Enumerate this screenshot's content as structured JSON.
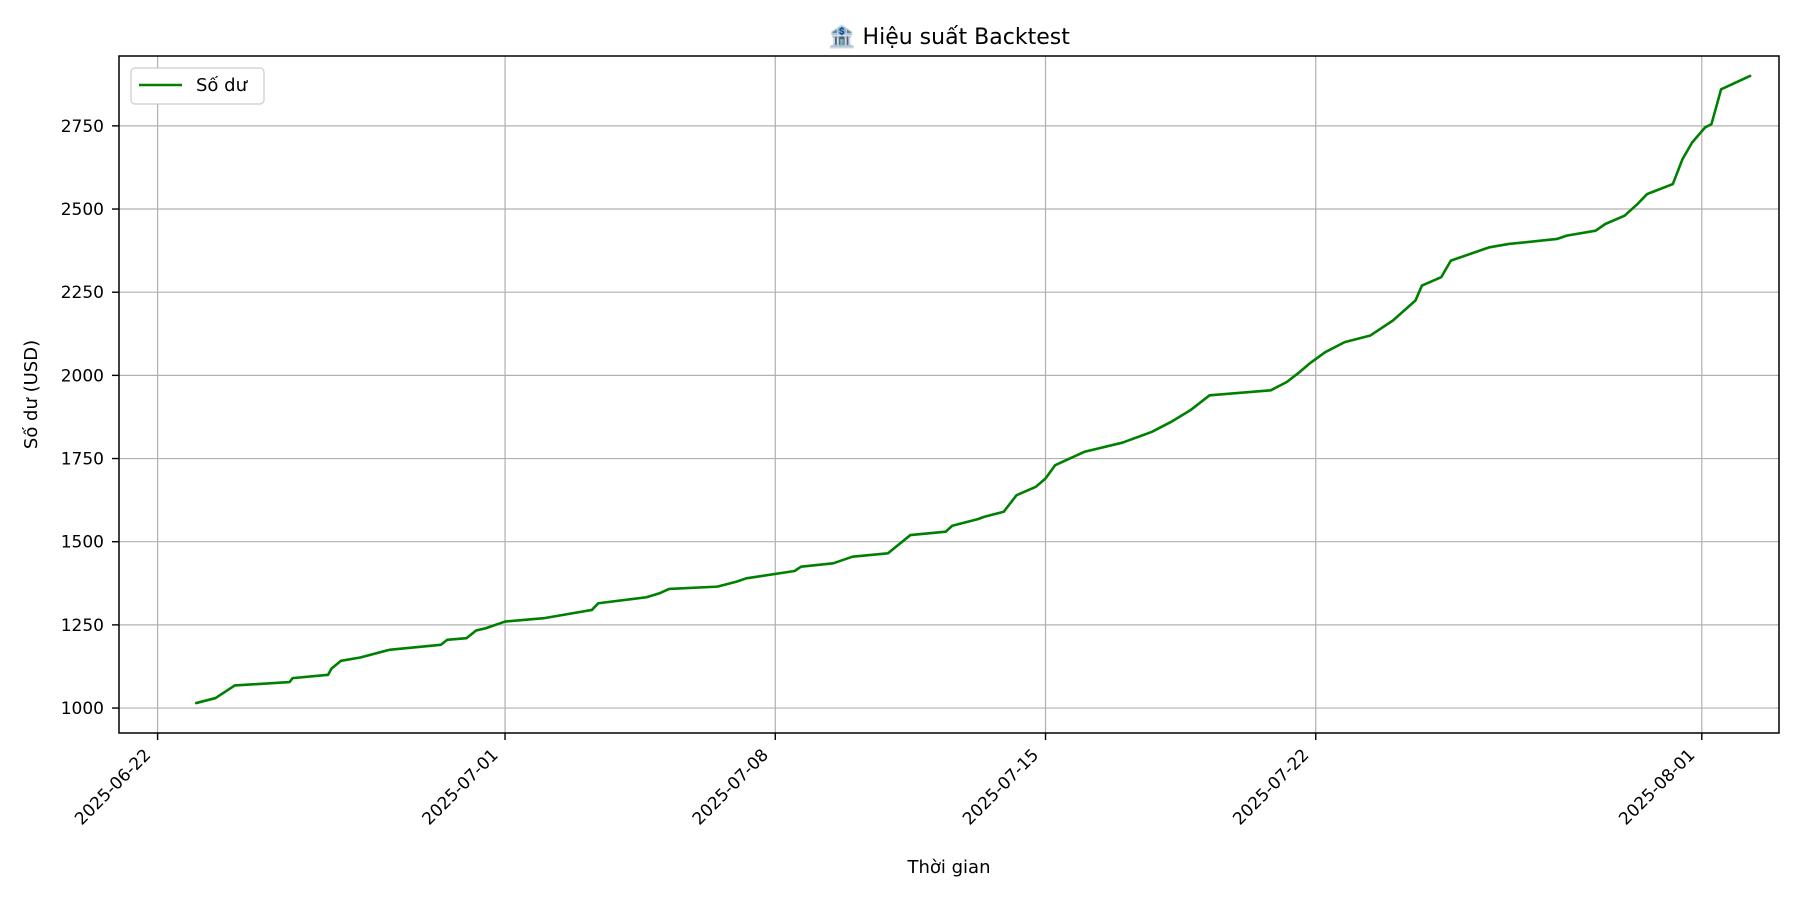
{
  "chart_data": {
    "type": "line",
    "title": "🏦 Hiệu suất Backtest",
    "xlabel": "Thời gian",
    "ylabel": "Số dư (USD)",
    "xlim": [
      "2025-06-21",
      "2025-08-03"
    ],
    "ylim": [
      925,
      2960
    ],
    "x_tick_labels": [
      "2025-06-22",
      "2025-07-01",
      "2025-07-08",
      "2025-07-15",
      "2025-07-22",
      "2025-08-01"
    ],
    "y_ticks": [
      1000,
      1250,
      1500,
      1750,
      2000,
      2250,
      2500,
      2750
    ],
    "y_tick_labels": [
      "1000",
      "1250",
      "1500",
      "1750",
      "2000",
      "2250",
      "2500",
      "2750"
    ],
    "grid": true,
    "legend_position": "top-left",
    "colors": {
      "line": "#008000"
    },
    "series": [
      {
        "name": "Số dư",
        "color": "#008000",
        "points": [
          [
            "2025-06-23",
            1015
          ],
          [
            "2025-06-23 12:00",
            1030
          ],
          [
            "2025-06-24",
            1068
          ],
          [
            "2025-06-25 10:00",
            1078
          ],
          [
            "2025-06-25 12:00",
            1090
          ],
          [
            "2025-06-26 10:00",
            1100
          ],
          [
            "2025-06-26 12:00",
            1118
          ],
          [
            "2025-06-26 18:00",
            1142
          ],
          [
            "2025-06-27 06:00",
            1152
          ],
          [
            "2025-06-28",
            1175
          ],
          [
            "2025-06-29 08:00",
            1190
          ],
          [
            "2025-06-29 12:00",
            1205
          ],
          [
            "2025-06-30",
            1210
          ],
          [
            "2025-06-30 06:00",
            1233
          ],
          [
            "2025-06-30 12:00",
            1240
          ],
          [
            "2025-07-01",
            1260
          ],
          [
            "2025-07-02",
            1270
          ],
          [
            "2025-07-02 18:00",
            1285
          ],
          [
            "2025-07-03 06:00",
            1295
          ],
          [
            "2025-07-03 10:00",
            1315
          ],
          [
            "2025-07-04 16:00",
            1333
          ],
          [
            "2025-07-05",
            1345
          ],
          [
            "2025-07-05 06:00",
            1358
          ],
          [
            "2025-07-06 12:00",
            1365
          ],
          [
            "2025-07-07",
            1380
          ],
          [
            "2025-07-07 06:00",
            1390
          ],
          [
            "2025-07-08 12:00",
            1412
          ],
          [
            "2025-07-08 16:00",
            1425
          ],
          [
            "2025-07-09 12:00",
            1435
          ],
          [
            "2025-07-10",
            1455
          ],
          [
            "2025-07-10 22:00",
            1465
          ],
          [
            "2025-07-11 12:00",
            1520
          ],
          [
            "2025-07-12 10:00",
            1530
          ],
          [
            "2025-07-12 14:00",
            1548
          ],
          [
            "2025-07-13 06:00",
            1568
          ],
          [
            "2025-07-13 10:00",
            1575
          ],
          [
            "2025-07-13 22:00",
            1590
          ],
          [
            "2025-07-14 06:00",
            1640
          ],
          [
            "2025-07-14 18:00",
            1665
          ],
          [
            "2025-07-15",
            1690
          ],
          [
            "2025-07-15 06:00",
            1730
          ],
          [
            "2025-07-16",
            1770
          ],
          [
            "2025-07-17",
            1798
          ],
          [
            "2025-07-17 18:00",
            1830
          ],
          [
            "2025-07-18 06:00",
            1860
          ],
          [
            "2025-07-18 18:00",
            1895
          ],
          [
            "2025-07-19 06:00",
            1940
          ],
          [
            "2025-07-20 20:00",
            1955
          ],
          [
            "2025-07-21 06:00",
            1980
          ],
          [
            "2025-07-21 14:00",
            2010
          ],
          [
            "2025-07-21 20:00",
            2035
          ],
          [
            "2025-07-22 06:00",
            2070
          ],
          [
            "2025-07-22 18:00",
            2100
          ],
          [
            "2025-07-23 10:00",
            2120
          ],
          [
            "2025-07-24",
            2165
          ],
          [
            "2025-07-24 14:00",
            2225
          ],
          [
            "2025-07-24 18:00",
            2270
          ],
          [
            "2025-07-25 06:00",
            2295
          ],
          [
            "2025-07-25 12:00",
            2345
          ],
          [
            "2025-07-26 12:00",
            2385
          ],
          [
            "2025-07-27",
            2395
          ],
          [
            "2025-07-28 06:00",
            2410
          ],
          [
            "2025-07-28 12:00",
            2420
          ],
          [
            "2025-07-29 06:00",
            2435
          ],
          [
            "2025-07-29 12:00",
            2455
          ],
          [
            "2025-07-30",
            2480
          ],
          [
            "2025-07-30 08:00",
            2515
          ],
          [
            "2025-07-30 14:00",
            2545
          ],
          [
            "2025-07-31 06:00",
            2575
          ],
          [
            "2025-07-31 12:00",
            2650
          ],
          [
            "2025-07-31 18:00",
            2700
          ],
          [
            "2025-08-01 02:00",
            2745
          ],
          [
            "2025-08-01 06:00",
            2755
          ],
          [
            "2025-08-01 10:00",
            2825
          ],
          [
            "2025-08-01 12:00",
            2860
          ],
          [
            "2025-08-02 06:00",
            2900
          ]
        ]
      }
    ]
  }
}
